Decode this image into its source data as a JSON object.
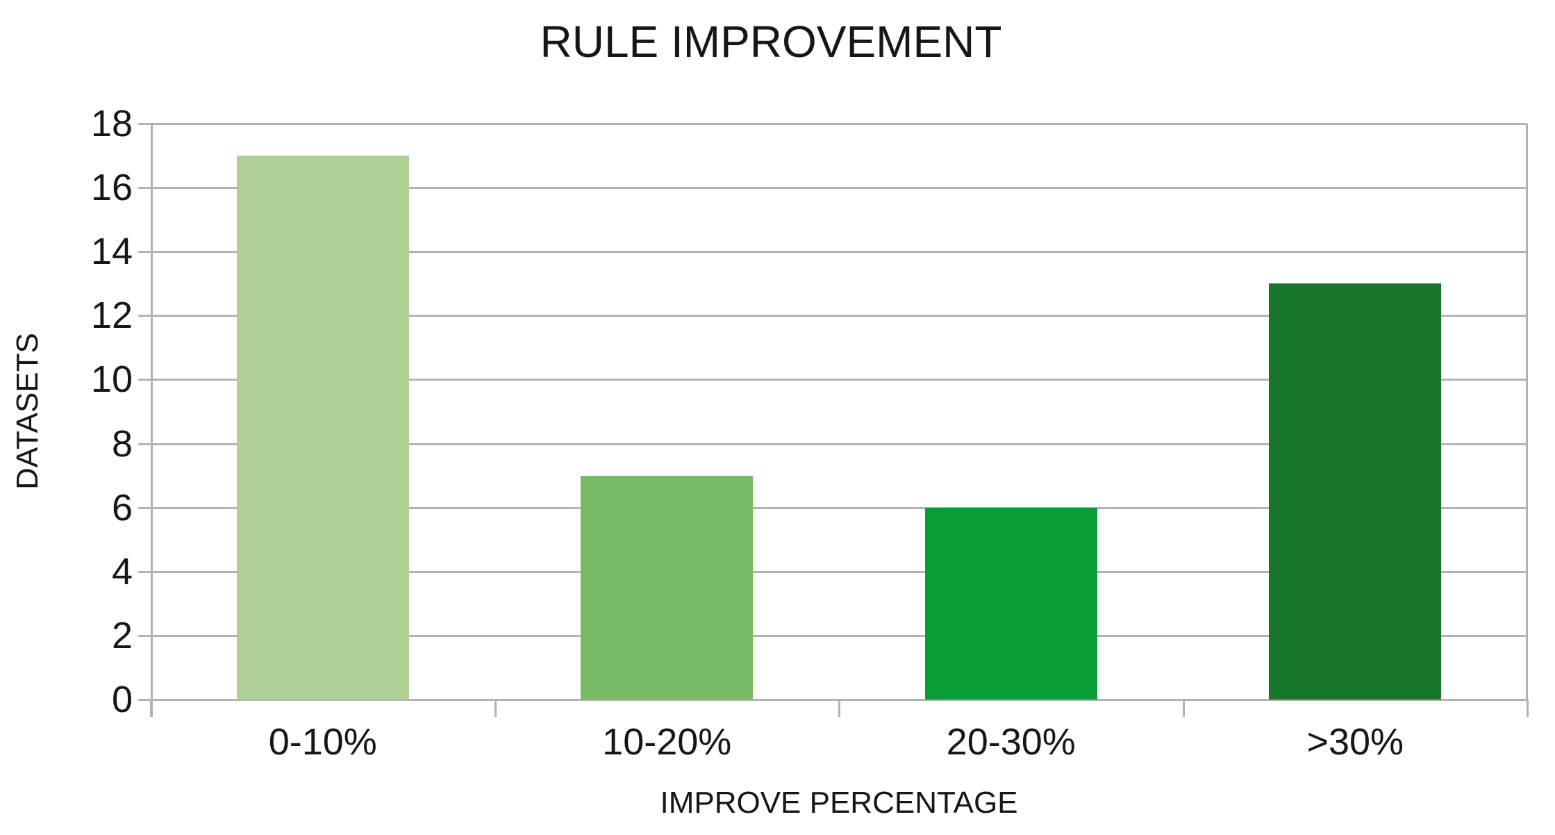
{
  "chart_data": {
    "type": "bar",
    "title": "RULE IMPROVEMENT",
    "xlabel": "IMPROVE PERCENTAGE",
    "ylabel": "DATASETS",
    "categories": [
      "0-10%",
      "10-20%",
      "20-30%",
      ">30%"
    ],
    "values": [
      17,
      7,
      6,
      13
    ],
    "ylim": [
      0,
      18
    ],
    "yticks": [
      0,
      2,
      4,
      6,
      8,
      10,
      12,
      14,
      16,
      18
    ],
    "grid": "horizontal",
    "legend_position": "none",
    "bar_colors": [
      "#afd095",
      "#77bc65",
      "#0a9c35",
      "#177628"
    ],
    "gridline_color": "#b3b3b3",
    "text_color": "#161616",
    "background_color": "#ffffff"
  }
}
